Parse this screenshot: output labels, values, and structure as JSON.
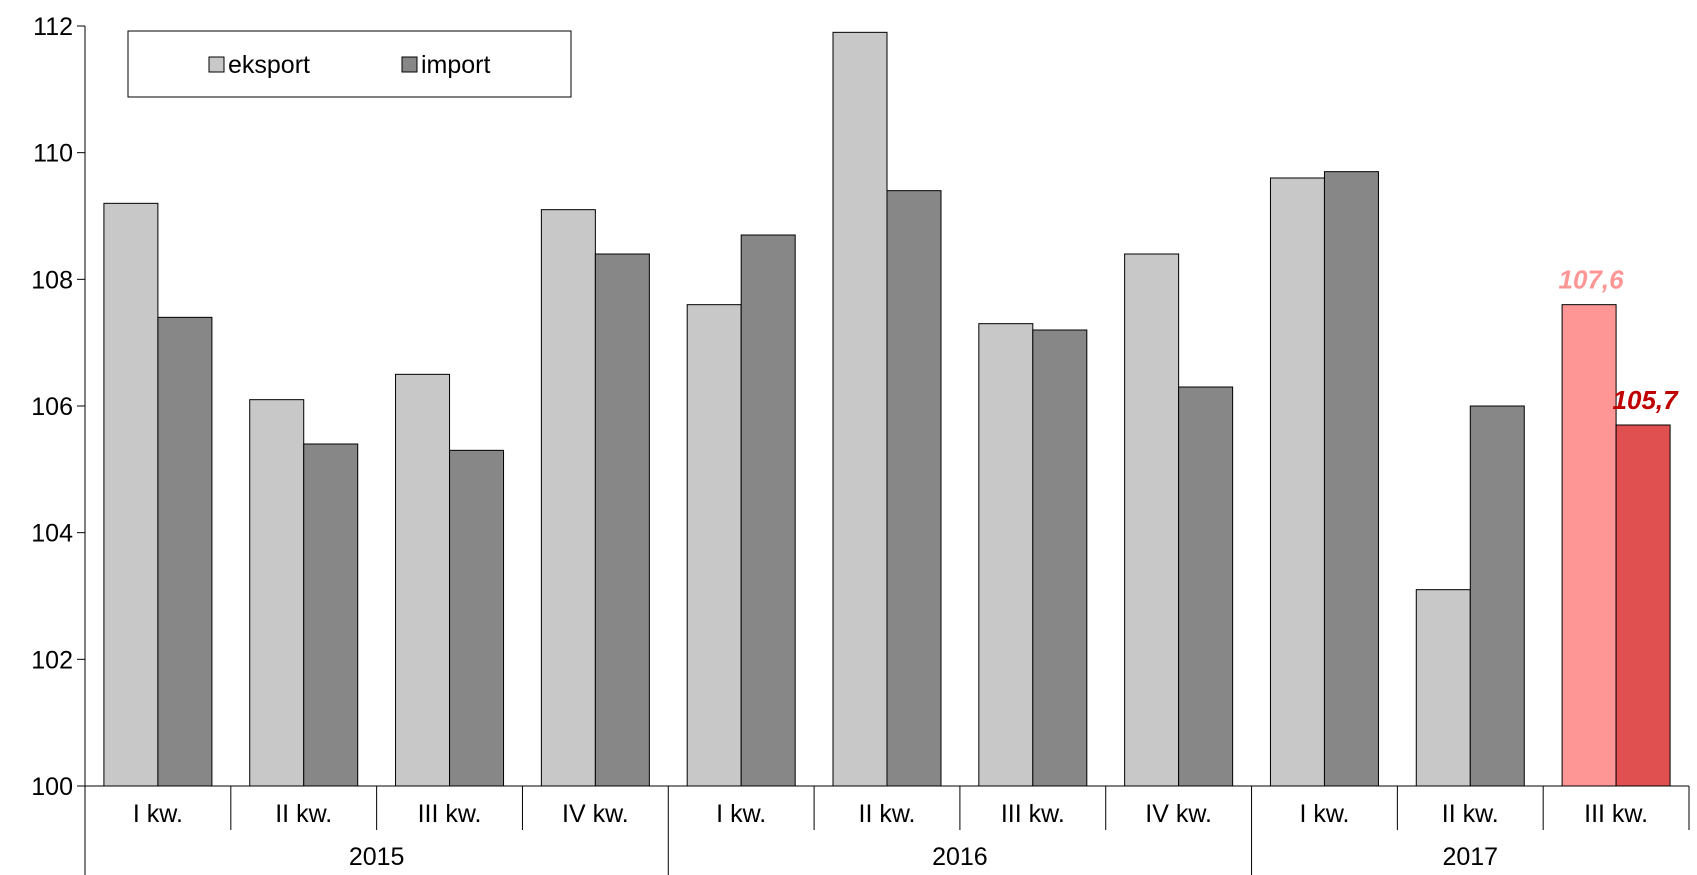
{
  "chart_data": {
    "type": "bar",
    "title": "",
    "xlabel": "",
    "ylabel": "",
    "ylim": [
      100,
      112
    ],
    "yticks": [
      100,
      102,
      104,
      106,
      108,
      110,
      112
    ],
    "grid": false,
    "legend_position": "top-left",
    "categories": [
      "I kw.",
      "II kw.",
      "III kw.",
      "IV kw.",
      "I kw.",
      "II kw.",
      "III kw.",
      "IV kw.",
      "I kw.",
      "II kw.",
      "III kw."
    ],
    "groups": [
      {
        "label": "2015",
        "count": 4
      },
      {
        "label": "2016",
        "count": 4
      },
      {
        "label": "2017",
        "count": 3
      }
    ],
    "series": [
      {
        "name": "eksport",
        "color": "#c8c8c8",
        "values": [
          109.2,
          106.1,
          106.5,
          109.1,
          107.6,
          111.9,
          107.3,
          108.4,
          109.6,
          103.1,
          107.6
        ]
      },
      {
        "name": "import",
        "color": "#878787",
        "values": [
          107.4,
          105.4,
          105.3,
          108.4,
          108.7,
          109.4,
          107.2,
          106.3,
          109.7,
          106.0,
          105.7
        ]
      }
    ],
    "highlight": {
      "index": 10,
      "colors": [
        "#ff9696",
        "#e15050"
      ],
      "label_colors": [
        "#ff9696",
        "#c00000"
      ]
    },
    "annotations": [
      {
        "series": 0,
        "index": 10,
        "text": "107,6"
      },
      {
        "series": 1,
        "index": 10,
        "text": "105,7"
      }
    ]
  }
}
